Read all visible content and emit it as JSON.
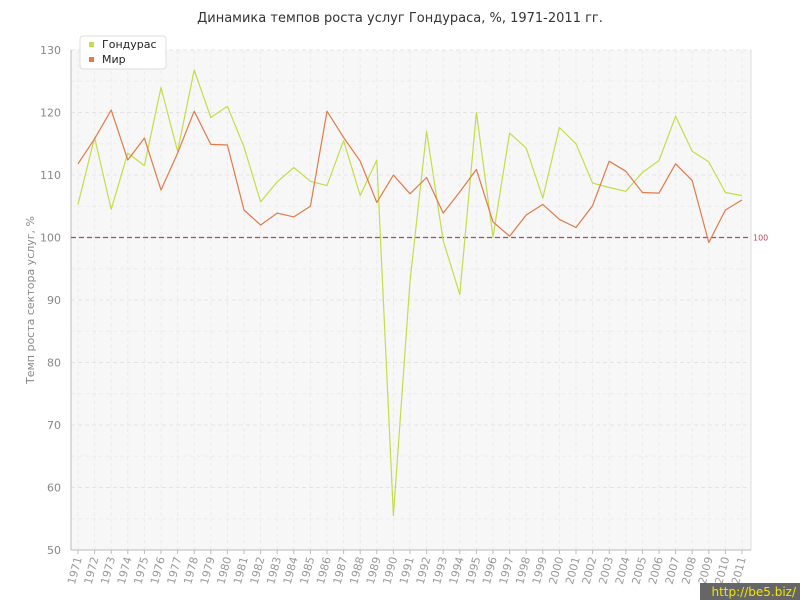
{
  "chart_data": {
    "type": "line",
    "title": "Динамика темпов роста услуг Гондураса, %, 1971-2011 гг.",
    "ylabel": "Темп роста сектора услуг, %",
    "xlabel": "",
    "ylim": [
      50,
      130
    ],
    "yticks": [
      50,
      60,
      70,
      80,
      90,
      100,
      110,
      120,
      130
    ],
    "grid": true,
    "legend_position": "top-left",
    "categories": [
      "1971",
      "1972",
      "1973",
      "1974",
      "1975",
      "1976",
      "1977",
      "1978",
      "1979",
      "1980",
      "1981",
      "1982",
      "1983",
      "1984",
      "1985",
      "1986",
      "1987",
      "1988",
      "1989",
      "1990",
      "1991",
      "1992",
      "1993",
      "1994",
      "1995",
      "1996",
      "1997",
      "1998",
      "1999",
      "2000",
      "2001",
      "2002",
      "2003",
      "2004",
      "2005",
      "2006",
      "2007",
      "2008",
      "2009",
      "2010",
      "2011"
    ],
    "series": [
      {
        "name": "Гондурас",
        "color": "#c3dd4a",
        "values": [
          105.3,
          116.0,
          104.5,
          113.5,
          111.5,
          124.0,
          113.8,
          126.8,
          119.2,
          121.0,
          114.5,
          105.7,
          108.9,
          111.2,
          109.0,
          108.3,
          115.5,
          106.7,
          112.4,
          55.5,
          93.0,
          117.0,
          99.5,
          90.9,
          120.0,
          100.1,
          116.7,
          114.3,
          106.3,
          117.6,
          115.0,
          108.7,
          108.0,
          107.4,
          110.4,
          112.3,
          119.4,
          113.8,
          112.1,
          107.2,
          106.7
        ]
      },
      {
        "name": "Мир",
        "color": "#e07a4a",
        "values": [
          111.8,
          115.8,
          120.4,
          112.4,
          115.9,
          107.6,
          113.5,
          120.2,
          114.9,
          114.8,
          104.4,
          102.0,
          103.9,
          103.3,
          105.0,
          120.2,
          116.0,
          112.2,
          105.6,
          110.0,
          107.0,
          109.6,
          103.9,
          107.3,
          110.9,
          102.5,
          100.2,
          103.6,
          105.3,
          102.9,
          101.6,
          105.1,
          112.2,
          110.6,
          107.2,
          107.1,
          111.8,
          109.1,
          99.2,
          104.4,
          106.0
        ]
      }
    ],
    "reference_line": {
      "value": 100,
      "label": "100",
      "color": "#b04a60"
    }
  },
  "watermark": "http://be5.biz/"
}
